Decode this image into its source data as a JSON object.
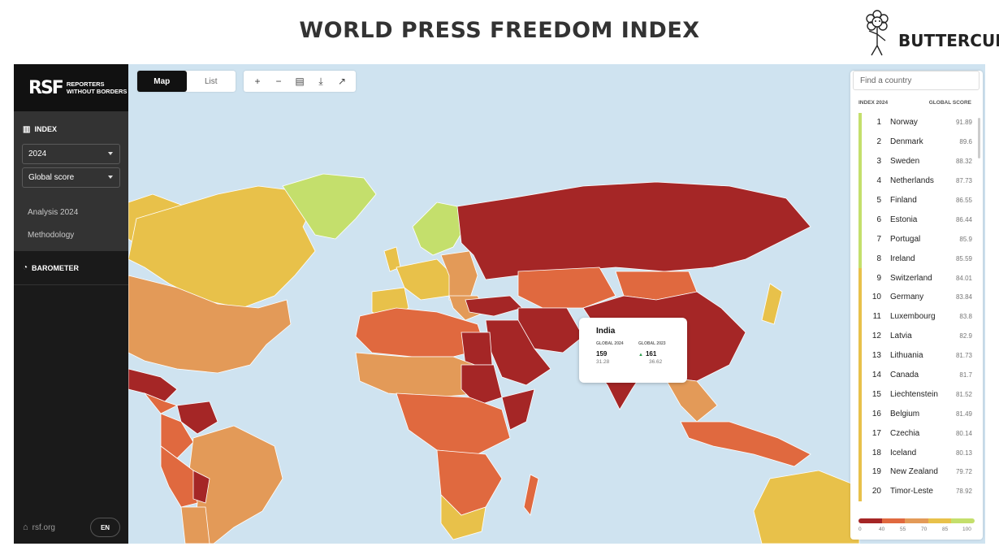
{
  "header": {
    "title": "WORLD PRESS FREEDOM INDEX",
    "brand": "BUTTERCUP"
  },
  "sidebar": {
    "logo_mark": "RSF",
    "logo_line1": "REPORTERS",
    "logo_line2": "WITHOUT BORDERS",
    "index_label": "INDEX",
    "year_select": "2024",
    "score_select": "Global score",
    "links": [
      "Analysis 2024",
      "Methodology"
    ],
    "barometer_label": "BAROMETER",
    "footer_link": "rsf.org",
    "lang": "EN"
  },
  "toolbar": {
    "map_label": "Map",
    "list_label": "List",
    "zoom_in": "+",
    "zoom_out": "−",
    "pdf_icon": "pdf-icon",
    "download_icon": "download-icon",
    "share_icon": "share-icon"
  },
  "tooltip": {
    "country": "India",
    "col1_label": "GLOBAL 2024",
    "col2_label": "GLOBAL 2023",
    "rank_2024": "159",
    "score_2024": "31.28",
    "rank_2023": "161",
    "score_2023": "36.62"
  },
  "panel": {
    "search_placeholder": "Find a country",
    "col_left": "INDEX 2024",
    "col_right": "GLOBAL SCORE",
    "rows": [
      {
        "rank": "1",
        "country": "Norway",
        "score": "91.89"
      },
      {
        "rank": "2",
        "country": "Denmark",
        "score": "89.6"
      },
      {
        "rank": "3",
        "country": "Sweden",
        "score": "88.32"
      },
      {
        "rank": "4",
        "country": "Netherlands",
        "score": "87.73"
      },
      {
        "rank": "5",
        "country": "Finland",
        "score": "86.55"
      },
      {
        "rank": "6",
        "country": "Estonia",
        "score": "86.44"
      },
      {
        "rank": "7",
        "country": "Portugal",
        "score": "85.9"
      },
      {
        "rank": "8",
        "country": "Ireland",
        "score": "85.59"
      },
      {
        "rank": "9",
        "country": "Switzerland",
        "score": "84.01"
      },
      {
        "rank": "10",
        "country": "Germany",
        "score": "83.84"
      },
      {
        "rank": "11",
        "country": "Luxembourg",
        "score": "83.8"
      },
      {
        "rank": "12",
        "country": "Latvia",
        "score": "82.9"
      },
      {
        "rank": "13",
        "country": "Lithuania",
        "score": "81.73"
      },
      {
        "rank": "14",
        "country": "Canada",
        "score": "81.7"
      },
      {
        "rank": "15",
        "country": "Liechtenstein",
        "score": "81.52"
      },
      {
        "rank": "16",
        "country": "Belgium",
        "score": "81.49"
      },
      {
        "rank": "17",
        "country": "Czechia",
        "score": "80.14"
      },
      {
        "rank": "18",
        "country": "Iceland",
        "score": "80.13"
      },
      {
        "rank": "19",
        "country": "New Zealand",
        "score": "79.72"
      },
      {
        "rank": "20",
        "country": "Timor-Leste",
        "score": "78.92"
      }
    ],
    "legend_ticks": [
      "0",
      "40",
      "55",
      "70",
      "85",
      "100"
    ]
  },
  "colors": {
    "very_serious": "#a52626",
    "difficult": "#e0693f",
    "problematic": "#e39a58",
    "satisfactory": "#e8c14a",
    "good": "#c4df6c",
    "ocean": "#cfe3f0",
    "sidebar": "#1a1a1a"
  }
}
